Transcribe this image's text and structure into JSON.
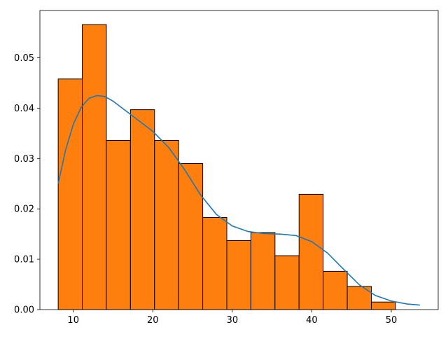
{
  "chart_data": {
    "type": "bar",
    "title": "",
    "xlabel": "",
    "ylabel": "",
    "grid": false,
    "legend": "none",
    "bin_edges": [
      8.1,
      11.13,
      14.16,
      17.19,
      20.22,
      23.25,
      26.28,
      29.31,
      32.34,
      35.37,
      38.4,
      41.43,
      44.46,
      47.49,
      50.52
    ],
    "values": [
      0.0458,
      0.0566,
      0.0336,
      0.0397,
      0.0336,
      0.029,
      0.0183,
      0.0137,
      0.0153,
      0.0107,
      0.0229,
      0.0076,
      0.0046,
      0.0015
    ],
    "kde_x": [
      8.1,
      9,
      10,
      11,
      12,
      13,
      14,
      15,
      16,
      18,
      20,
      22,
      24,
      26,
      28,
      30,
      32,
      34,
      36,
      38,
      40,
      42,
      44,
      46,
      48,
      50,
      52,
      53.6
    ],
    "kde_y": [
      0.025,
      0.0315,
      0.0368,
      0.0402,
      0.042,
      0.0425,
      0.0423,
      0.0414,
      0.0402,
      0.0378,
      0.0354,
      0.0322,
      0.0278,
      0.0228,
      0.0189,
      0.0166,
      0.0155,
      0.0151,
      0.015,
      0.0147,
      0.0135,
      0.0112,
      0.008,
      0.0049,
      0.0028,
      0.0017,
      0.0011,
      0.0009
    ],
    "xlim": [
      5.8,
      55.9
    ],
    "ylim": [
      0,
      0.0594
    ],
    "xticks": [
      10,
      20,
      30,
      40,
      50
    ],
    "xtick_labels": [
      "10",
      "20",
      "30",
      "40",
      "50"
    ],
    "yticks": [
      0.0,
      0.01,
      0.02,
      0.03,
      0.04,
      0.05
    ],
    "ytick_labels": [
      "0.00",
      "0.01",
      "0.02",
      "0.03",
      "0.04",
      "0.05"
    ],
    "colors": {
      "bar_fill": "#ff7f0e",
      "bar_edge": "#000000",
      "kde_line": "#1f77b4"
    }
  }
}
